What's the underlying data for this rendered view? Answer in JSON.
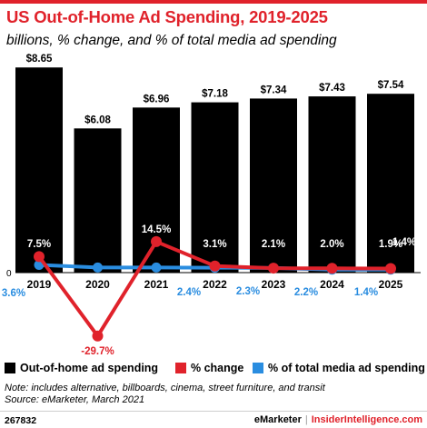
{
  "title": "US Out-of-Home Ad Spending, 2019-2025",
  "subtitle": "billions, % change, and % of total media ad spending",
  "colors": {
    "accent": "#e0222b",
    "bars": "#000000",
    "change_line": "#e0222b",
    "share_line": "#2a8de0"
  },
  "chart_data": {
    "type": "bar",
    "categories": [
      "2019",
      "2020",
      "2021",
      "2022",
      "2023",
      "2024",
      "2025"
    ],
    "zero_label": "0",
    "series": [
      {
        "name": "Out-of-home ad spending",
        "type": "bar",
        "values": [
          8.65,
          6.08,
          6.96,
          7.18,
          7.34,
          7.43,
          7.54
        ],
        "labels": [
          "$8.65",
          "$6.08",
          "$6.96",
          "$7.18",
          "$7.34",
          "$7.43",
          "$7.54"
        ]
      },
      {
        "name": "% change",
        "type": "line",
        "values": [
          7.5,
          -29.7,
          14.5,
          3.1,
          2.1,
          2.0,
          1.9
        ],
        "labels": [
          "7.5%",
          "-29.7%",
          "14.5%",
          "3.1%",
          "2.1%",
          "2.0%",
          "1.9%"
        ]
      },
      {
        "name": "% of total media ad spending",
        "type": "line",
        "values": [
          3.6,
          2.4,
          2.4,
          2.3,
          2.2,
          1.4,
          1.4
        ],
        "labels": [
          "3.6%",
          "",
          "2.4%",
          "2.3%",
          "2.2%",
          "1.4%",
          "1.4%"
        ]
      }
    ]
  },
  "legend": [
    {
      "label": "Out-of-home ad spending",
      "color": "#000000"
    },
    {
      "label": "% change",
      "color": "#e0222b"
    },
    {
      "label": "% of total media ad spending",
      "color": "#2a8de0"
    }
  ],
  "note_line1": "Note: includes alternative, billboards, cinema, street furniture, and transit",
  "note_line2": "Source: eMarketer, March 2021",
  "chart_id": "267832",
  "brand_left": "eMarketer",
  "brand_sep": "|",
  "brand_right": "InsiderIntelligence.com"
}
